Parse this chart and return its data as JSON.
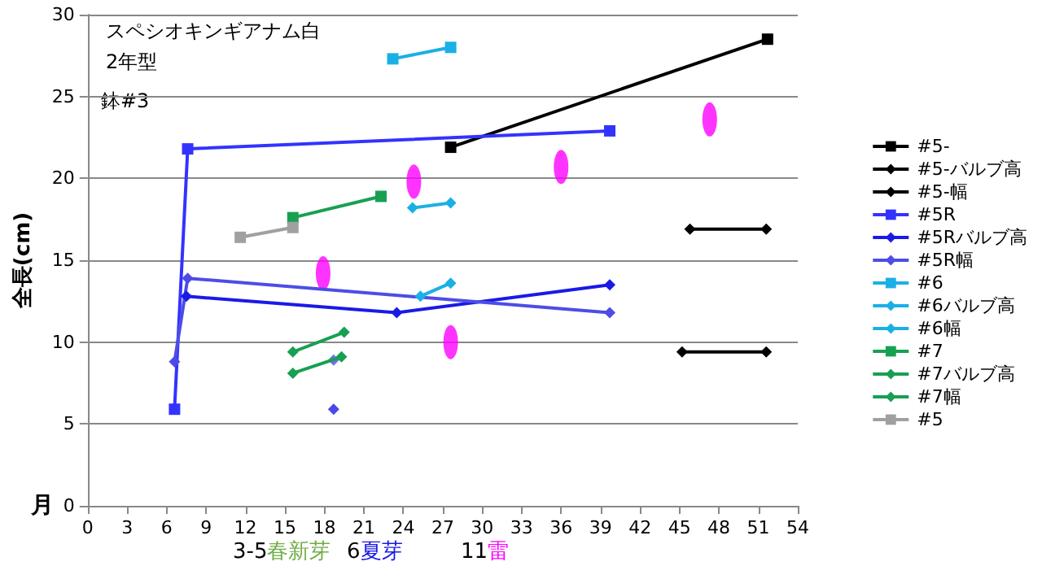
{
  "chart_data": {
    "type": "line",
    "title": "スペシオキンギアナム白",
    "subtitle": "2年型",
    "xlabel": "月",
    "ylabel": "全長(cm)",
    "annotations": [
      "鉢#3",
      "3-5春新芽",
      "6夏芽",
      "11雷"
    ],
    "xlim": [
      0,
      54
    ],
    "xticks": [
      0,
      3,
      6,
      9,
      12,
      15,
      18,
      21,
      24,
      27,
      30,
      33,
      36,
      39,
      42,
      45,
      48,
      51,
      54
    ],
    "ylim": [
      0,
      30
    ],
    "yticks": [
      0,
      5,
      10,
      15,
      20,
      25,
      30
    ],
    "grid": "y",
    "legend": "right",
    "series": [
      {
        "name": "#5-",
        "color": "#000000",
        "marker": "square",
        "x": [
          27.6,
          51.7
        ],
        "values": [
          21.9,
          28.5
        ]
      },
      {
        "name": "#5-バルブ高",
        "color": "#000000",
        "marker": "diamond",
        "x": [
          45.8,
          51.6
        ],
        "values": [
          16.9,
          16.9
        ]
      },
      {
        "name": "#5-幅",
        "color": "#000000",
        "marker": "diamond",
        "x": [
          45.2,
          51.6
        ],
        "values": [
          9.4,
          9.4
        ]
      },
      {
        "name": "#5R",
        "color": "#3333ff",
        "marker": "square",
        "x": [
          6.6,
          7.6,
          39.7
        ],
        "values": [
          5.9,
          21.8,
          22.9
        ]
      },
      {
        "name": "#5Rバルブ高",
        "color": "#1a1ae6",
        "marker": "diamond",
        "x": [
          7.5,
          23.5,
          39.7
        ],
        "values": [
          12.8,
          11.8,
          13.5
        ]
      },
      {
        "name": "#5R幅",
        "color": "#4d4de6",
        "marker": "diamond",
        "x": [
          6.6,
          7.6,
          39.7
        ],
        "values": [
          8.8,
          13.9,
          11.8
        ]
      },
      {
        "name": "#6",
        "color": "#1ab0e6",
        "marker": "square",
        "x": [
          23.2,
          27.6
        ],
        "values": [
          27.3,
          28.0
        ]
      },
      {
        "name": "#6バルブ高",
        "color": "#1ab0e6",
        "marker": "diamond",
        "x": [
          24.7,
          27.6
        ],
        "values": [
          18.2,
          18.5
        ]
      },
      {
        "name": "#6幅",
        "color": "#1ab0e6",
        "marker": "diamond",
        "x": [
          25.3,
          27.6
        ],
        "values": [
          12.8,
          13.6
        ]
      },
      {
        "name": "#7",
        "color": "#17a052",
        "marker": "square",
        "x": [
          15.6,
          22.3
        ],
        "values": [
          17.6,
          18.9
        ]
      },
      {
        "name": "#7バルブ高",
        "color": "#17a052",
        "marker": "diamond",
        "x": [
          15.6,
          19.3
        ],
        "values": [
          8.1,
          9.1
        ]
      },
      {
        "name": "#7幅",
        "color": "#17a052",
        "marker": "diamond",
        "x": [
          15.6,
          19.5
        ],
        "values": [
          9.4,
          10.6
        ]
      },
      {
        "name": "#5",
        "color": "#a0a0a0",
        "marker": "square",
        "x": [
          11.6,
          15.6
        ],
        "values": [
          16.4,
          17.0
        ]
      },
      {
        "type": "scatter",
        "color": "#1a1ae6",
        "marker": "diamond",
        "x": [
          18.7
        ],
        "values": [
          5.9
        ]
      },
      {
        "type": "scatter",
        "color": "#4d4de6",
        "marker": "diamond",
        "x": [
          18.7
        ],
        "values": [
          8.9
        ]
      },
      {
        "type": "scatter",
        "color": "#ff00ff",
        "marker": "circle",
        "x": [
          17.9,
          24.8,
          36.0,
          47.3,
          27.6
        ],
        "values": [
          14.2,
          19.8,
          20.7,
          23.6,
          10.0
        ]
      }
    ]
  }
}
